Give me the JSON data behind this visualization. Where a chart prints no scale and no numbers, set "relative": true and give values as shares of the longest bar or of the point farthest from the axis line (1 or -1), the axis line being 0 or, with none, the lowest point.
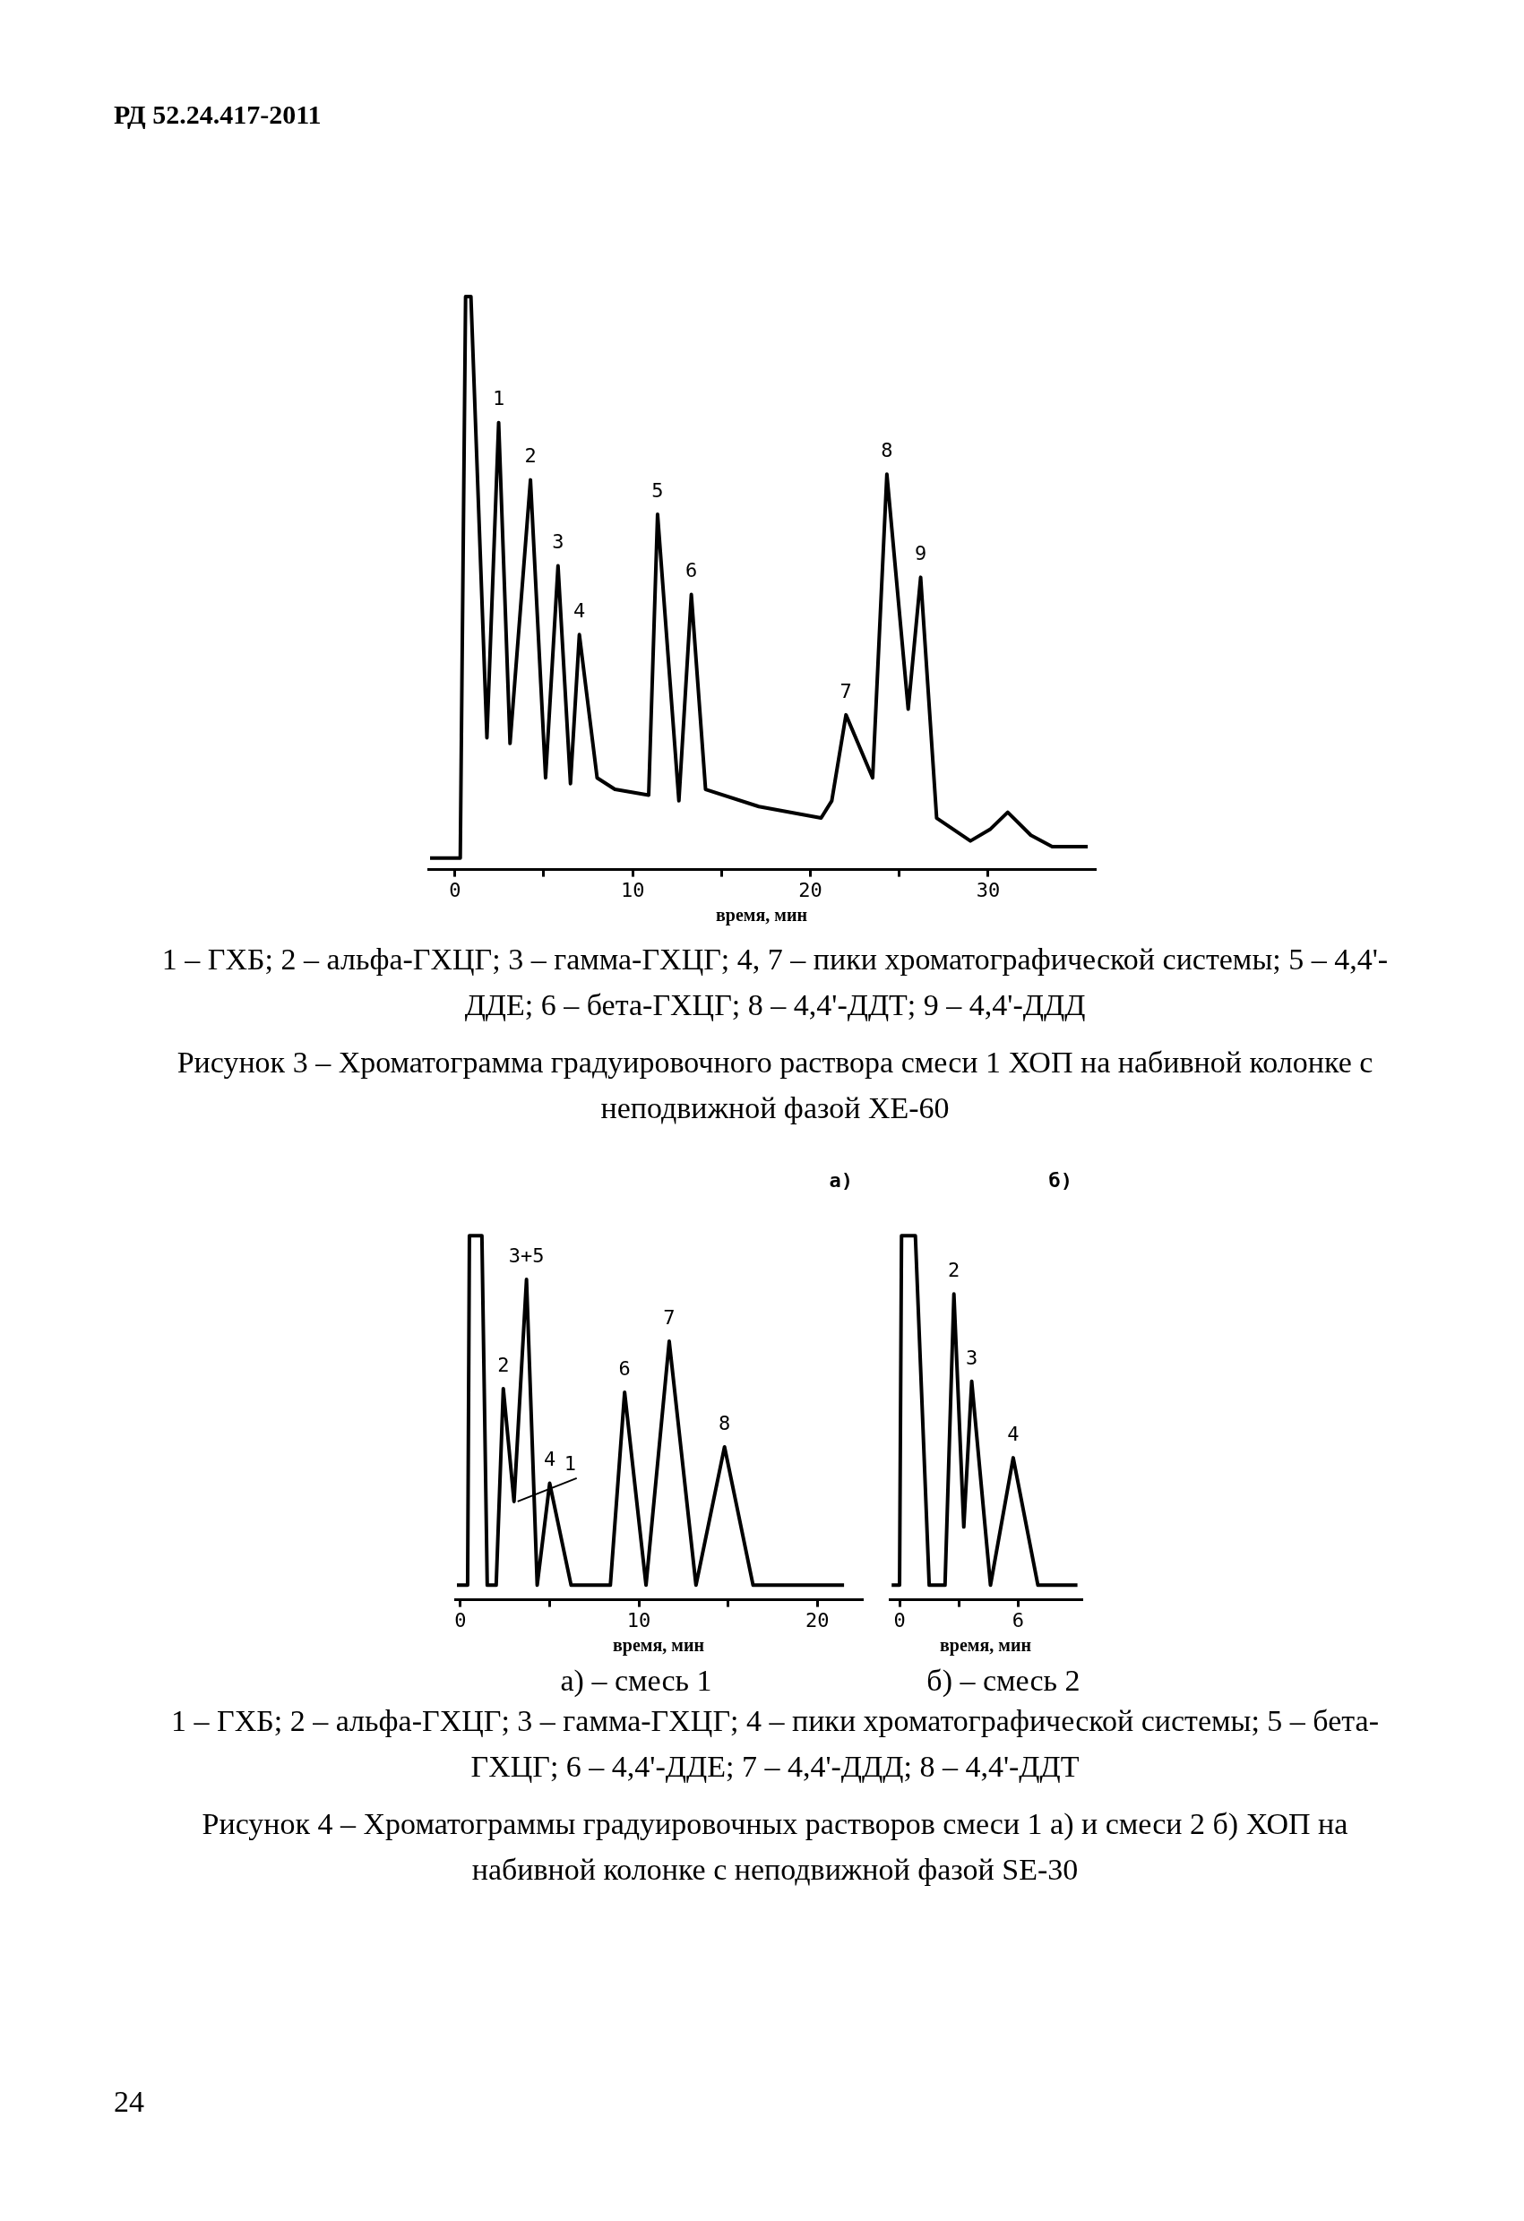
{
  "chart_data": [
    {
      "type": "line",
      "relative": true,
      "xlabel": "время, мин",
      "xlim": [
        -1.5,
        36
      ],
      "xticks": [
        0,
        {
          "value": 5,
          "label": null
        },
        10,
        {
          "value": 15,
          "label": null
        },
        20,
        {
          "value": 25,
          "label": null
        },
        30
      ],
      "x": [
        -1.4,
        0.3,
        0.6,
        0.9,
        1.8,
        2.46,
        3.1,
        4.25,
        5.1,
        5.8,
        6.5,
        7.0,
        8.0,
        9.0,
        10.9,
        11.4,
        12.6,
        13.3,
        14.1,
        17.1,
        20.6,
        21.2,
        22.0,
        23.5,
        24.3,
        25.5,
        26.2,
        27.1,
        29.0,
        30.1,
        31.1,
        32.4,
        33.6,
        35.6
      ],
      "series": [
        {
          "color": "#000000",
          "values": [
            0.02,
            0.02,
            1.0,
            1.0,
            0.23,
            0.78,
            0.22,
            0.68,
            0.16,
            0.53,
            0.15,
            0.41,
            0.16,
            0.14,
            0.13,
            0.62,
            0.12,
            0.48,
            0.14,
            0.11,
            0.09,
            0.12,
            0.27,
            0.16,
            0.69,
            0.28,
            0.51,
            0.09,
            0.05,
            0.07,
            0.1,
            0.06,
            0.04,
            0.04
          ]
        }
      ],
      "annotations": [
        "РД 52.24.417-2011",
        {
          "text": "1",
          "x": 2.46,
          "y": 0.78
        },
        {
          "text": "2",
          "x": 4.25,
          "y": 0.68
        },
        {
          "text": "3",
          "x": 5.8,
          "y": 0.53
        },
        {
          "text": "4",
          "x": 7.0,
          "y": 0.41
        },
        {
          "text": "5",
          "x": 11.4,
          "y": 0.62
        },
        {
          "text": "6",
          "x": 13.3,
          "y": 0.48
        },
        {
          "text": "7",
          "x": 22.0,
          "y": 0.27
        },
        {
          "text": "8",
          "x": 24.3,
          "y": 0.69
        },
        {
          "text": "9",
          "x": 26.2,
          "y": 0.51
        },
        "1 – ГХБ; 2 – альфа-ГХЦГ; 3 – гамма-ГХЦГ; 4, 7 – пики хроматографической системы; 5 – 4,4'-ДДЕ; 6 – бета-ГХЦГ; 8 – 4,4'-ДДТ; 9 – 4,4'-ДДД",
        "Рисунок 3 – Хроматограмма градуировочного раствора смеси 1 ХОП на набивной колонке с неподвижной фазой ХЕ-60"
      ]
    },
    {
      "type": "line",
      "relative": true,
      "title": "а)",
      "xlabel": "время, мин",
      "xlim": [
        -0.3,
        22.5
      ],
      "xticks": [
        0,
        {
          "value": 5,
          "label": null
        },
        10,
        {
          "value": 15,
          "label": null
        },
        20
      ],
      "x": [
        -0.2,
        0.4,
        0.5,
        1.2,
        1.5,
        2.0,
        2.4,
        3.0,
        3.7,
        4.3,
        5.0,
        6.2,
        8.4,
        9.2,
        10.4,
        11.7,
        13.2,
        14.8,
        16.4,
        21.5
      ],
      "series": [
        {
          "color": "#000000",
          "values": [
            0.04,
            0.04,
            1.0,
            1.0,
            0.04,
            0.04,
            0.58,
            0.27,
            0.88,
            0.04,
            0.32,
            0.04,
            0.04,
            0.57,
            0.04,
            0.71,
            0.04,
            0.42,
            0.04,
            0.04
          ]
        }
      ],
      "annotations": [
        {
          "text": "3+5",
          "x": 3.7,
          "y": 0.88
        },
        {
          "text": "2",
          "x": 2.4,
          "y": 0.58
        },
        {
          "text": "1",
          "x": 3.0,
          "y": 0.27
        },
        {
          "text": "4",
          "x": 5.0,
          "y": 0.32
        },
        {
          "text": "6",
          "x": 9.2,
          "y": 0.57
        },
        {
          "text": "7",
          "x": 11.7,
          "y": 0.71
        },
        {
          "text": "8",
          "x": 14.8,
          "y": 0.42
        },
        "а) – смесь 1",
        "1 – ГХБ; 2 – альфа-ГХЦГ; 3 – гамма-ГХЦГ; 4 – пики хроматографической системы; 5 – бета-ГХЦГ; 6 – 4,4'-ДДЕ; 7 – 4,4'-ДДД; 8 – 4,4'-ДДТ",
        "Рисунок 4 – Хроматограммы градуировочных растворов смеси 1 а) и смеси 2 б) ХОП на набивной колонке с неподвижной фазой SE-30"
      ]
    },
    {
      "type": "line",
      "relative": true,
      "title": "б)",
      "xlabel": "время, мин",
      "xlim": [
        -0.5,
        9.2
      ],
      "xticks": [
        0,
        {
          "value": 3,
          "label": null
        },
        6
      ],
      "x": [
        -0.4,
        0.0,
        0.1,
        0.8,
        1.5,
        2.3,
        2.75,
        3.25,
        3.65,
        4.6,
        5.75,
        7.0,
        9.0
      ],
      "series": [
        {
          "color": "#000000",
          "values": [
            0.04,
            0.04,
            1.0,
            1.0,
            0.04,
            0.04,
            0.84,
            0.2,
            0.6,
            0.04,
            0.39,
            0.04,
            0.04
          ]
        }
      ],
      "annotations": [
        {
          "text": "2",
          "x": 2.75,
          "y": 0.84
        },
        {
          "text": "3",
          "x": 3.65,
          "y": 0.6
        },
        {
          "text": "4",
          "x": 5.75,
          "y": 0.39
        },
        "б) – смесь 2",
        "24"
      ]
    }
  ]
}
